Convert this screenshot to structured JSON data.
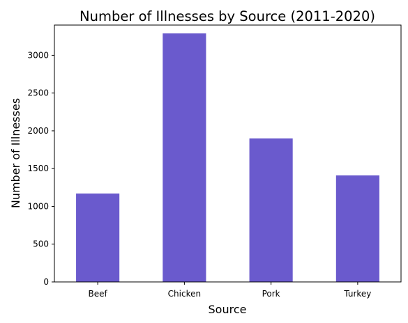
{
  "chart_data": {
    "type": "bar",
    "title": "Number of Illnesses by Source (2011-2020)",
    "xlabel": "Source",
    "ylabel": "Number of Illnesses",
    "categories": [
      "Beef",
      "Chicken",
      "Pork",
      "Turkey"
    ],
    "values": [
      1170,
      3290,
      1900,
      1410
    ],
    "ylim": [
      0,
      3400
    ],
    "yticks": [
      0,
      500,
      1000,
      1500,
      2000,
      2500,
      3000
    ],
    "ytick_labels": [
      "0",
      "500",
      "1000",
      "1500",
      "2000",
      "2500",
      "3000"
    ],
    "bar_color": "#6a5acd",
    "grid": false,
    "legend": "none"
  }
}
